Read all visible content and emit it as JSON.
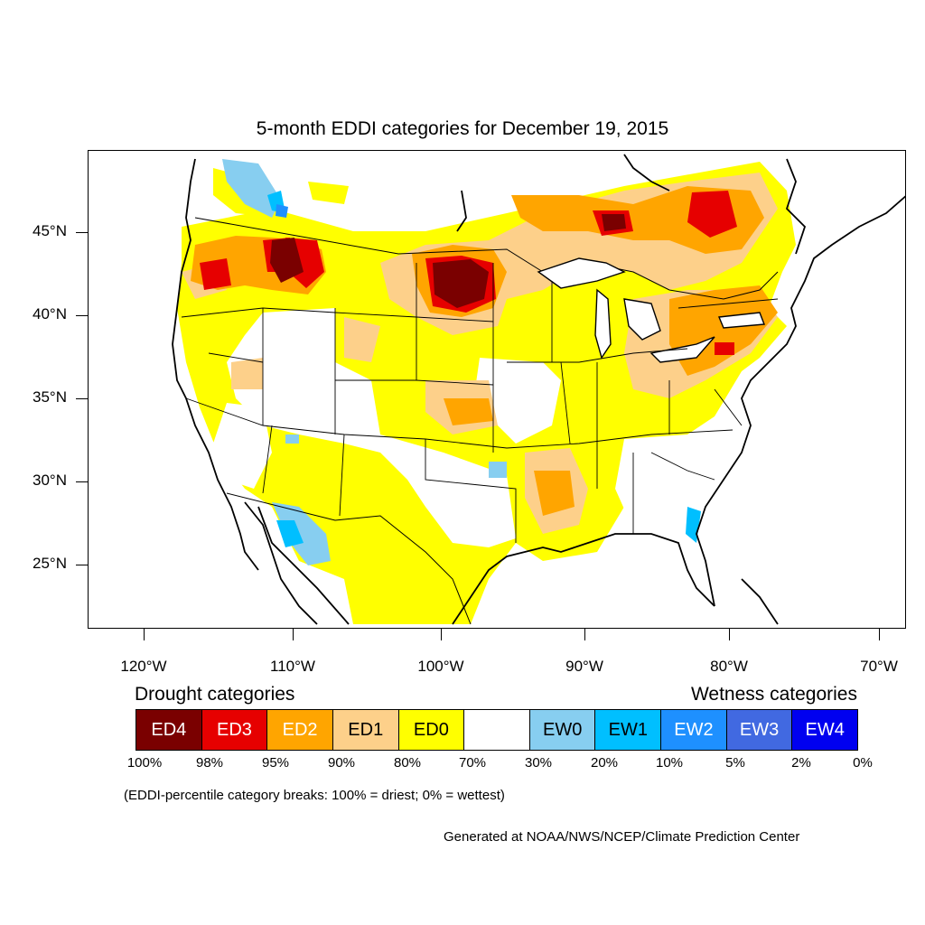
{
  "title": "5-month EDDI categories for December 19, 2015",
  "axes": {
    "lat_labels": [
      "45°N",
      "40°N",
      "35°N",
      "30°N",
      "25°N"
    ],
    "lon_labels": [
      "120°W",
      "110°W",
      "100°W",
      "90°W",
      "80°W",
      "70°W"
    ]
  },
  "legend": {
    "drought_title": "Drought categories",
    "wetness_title": "Wetness categories",
    "categories": [
      {
        "label": "ED4",
        "color": "#7a0000",
        "text_color": "#ffffff"
      },
      {
        "label": "ED3",
        "color": "#e60000",
        "text_color": "#ffffff"
      },
      {
        "label": "ED2",
        "color": "#ffa500",
        "text_color": "#ffffff"
      },
      {
        "label": "ED1",
        "color": "#fdd08a",
        "text_color": "#000000"
      },
      {
        "label": "ED0",
        "color": "#ffff00",
        "text_color": "#000000"
      },
      {
        "label": "",
        "color": "#ffffff",
        "text_color": "#000000"
      },
      {
        "label": "EW0",
        "color": "#87cef0",
        "text_color": "#000000"
      },
      {
        "label": "EW1",
        "color": "#00bfff",
        "text_color": "#000000"
      },
      {
        "label": "EW2",
        "color": "#1e90ff",
        "text_color": "#ffffff"
      },
      {
        "label": "EW3",
        "color": "#4169e1",
        "text_color": "#ffffff"
      },
      {
        "label": "EW4",
        "color": "#0000f0",
        "text_color": "#ffffff"
      }
    ],
    "breaks": [
      "100%",
      "98%",
      "95%",
      "90%",
      "80%",
      "70%",
      "30%",
      "20%",
      "10%",
      "5%",
      "2%",
      "0%"
    ]
  },
  "footnote": "(EDDI-percentile category breaks: 100% = driest; 0% = wettest)",
  "credit": "Generated at NOAA/NWS/NCEP/Climate Prediction Center"
}
